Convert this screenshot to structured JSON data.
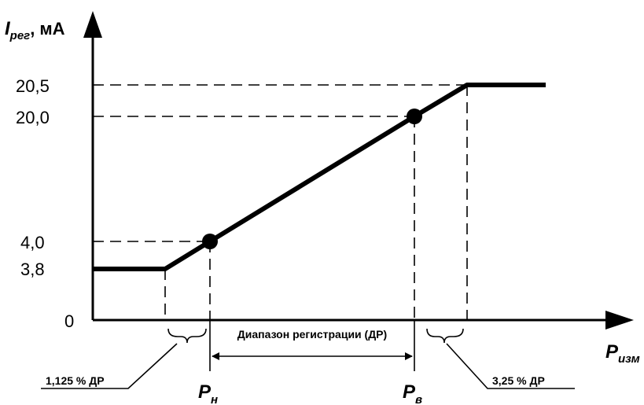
{
  "y_axis": {
    "main": "I",
    "sub": "рег",
    "unit": ", мА"
  },
  "x_axis": {
    "main": "P",
    "sub": "изм"
  },
  "y_ticks": [
    "20,5",
    "20,0",
    "4,0",
    "3,8",
    "0"
  ],
  "range_label": "Диапазон регистрации (ДР)",
  "p_low": {
    "main": "P",
    "sub": "н"
  },
  "p_high": {
    "main": "P",
    "sub": "в"
  },
  "left_note": "1,125 % ДР",
  "right_note": "3,25 % ДР"
}
